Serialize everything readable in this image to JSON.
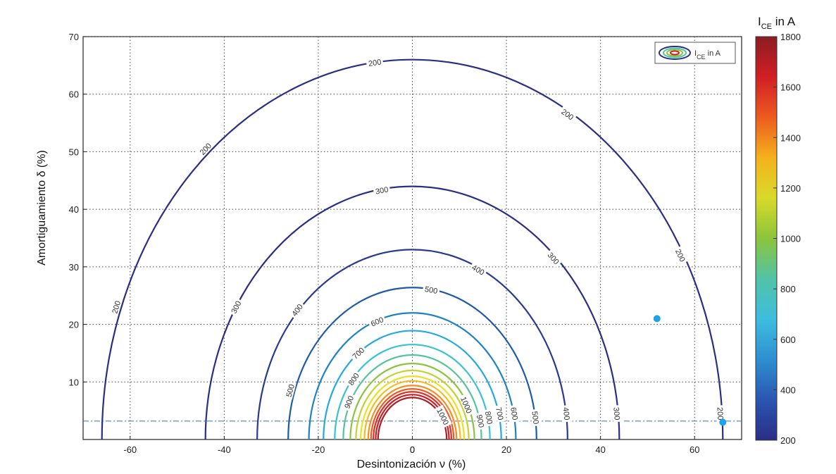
{
  "chart_data": {
    "type": "contour",
    "xlabel": "Desintonización ν (%)",
    "ylabel": "Amortiguamiento δ (%)",
    "xlim": [
      -70,
      70
    ],
    "ylim": [
      0,
      70
    ],
    "xticks": [
      -60,
      -40,
      -20,
      0,
      20,
      40,
      60
    ],
    "yticks": [
      10,
      20,
      30,
      40,
      50,
      60,
      70
    ],
    "grid": true,
    "legend": {
      "position": "top-right",
      "label_main": "I",
      "label_sub": "CE",
      "label_rest": " in A"
    },
    "colorbar": {
      "title_main": "I",
      "title_sub": "CE",
      "title_rest": " in A",
      "min": 200,
      "max": 1800,
      "ticks": [
        200,
        400,
        600,
        800,
        1000,
        1200,
        1400,
        1600,
        1800
      ],
      "colors": [
        "#2b2e88",
        "#2a56b0",
        "#2f8fd0",
        "#3dbde0",
        "#52c3a6",
        "#8cc43c",
        "#d8da2a",
        "#f4b21c",
        "#ec5b1f",
        "#d11f25",
        "#8b1e22"
      ]
    },
    "levels": [
      {
        "value": 200,
        "radius": 66,
        "color": "#2a2f84",
        "labeled": true
      },
      {
        "value": 300,
        "radius": 44,
        "color": "#2a2f84",
        "labeled": true
      },
      {
        "value": 400,
        "radius": 33,
        "color": "#283a92",
        "labeled": true
      },
      {
        "value": 500,
        "radius": 26.4,
        "color": "#1f5aa9",
        "labeled": true
      },
      {
        "value": 600,
        "radius": 22,
        "color": "#1d82c6",
        "labeled": true
      },
      {
        "value": 700,
        "radius": 18.9,
        "color": "#24a9df",
        "labeled": true
      },
      {
        "value": 800,
        "radius": 16.5,
        "color": "#39c2d0",
        "labeled": true
      },
      {
        "value": 900,
        "radius": 14.7,
        "color": "#56c49a",
        "labeled": true
      },
      {
        "value": 1000,
        "radius": 13.2,
        "color": "#8ac43f",
        "labeled": true
      },
      {
        "value": 1100,
        "radius": 12.0,
        "color": "#c0d32e",
        "labeled": false
      },
      {
        "value": 1200,
        "radius": 11.0,
        "color": "#ece11e",
        "labeled": false
      },
      {
        "value": 1300,
        "radius": 10.2,
        "color": "#f6bb1f",
        "labeled": false
      },
      {
        "value": 1400,
        "radius": 9.4,
        "color": "#f28f20",
        "labeled": false
      },
      {
        "value": 1500,
        "radius": 8.8,
        "color": "#ec5a22",
        "labeled": false
      },
      {
        "value": 1600,
        "radius": 8.3,
        "color": "#df2e26",
        "labeled": false
      },
      {
        "value": 1700,
        "radius": 7.8,
        "color": "#c91f26",
        "labeled": false
      },
      {
        "value": 1800,
        "radius": 7.3,
        "color": "#ac1e24",
        "labeled": false
      }
    ],
    "contour_labels": [
      {
        "text": "200",
        "x": -8,
        "y": 65.5
      },
      {
        "text": "200",
        "x": 33,
        "y": 56.5
      },
      {
        "text": "200",
        "x": -44,
        "y": 50.5
      },
      {
        "text": "200",
        "x": 57,
        "y": 32
      },
      {
        "text": "200",
        "x": -63,
        "y": 23
      },
      {
        "text": "200",
        "x": 65.5,
        "y": 4.5
      },
      {
        "text": "300",
        "x": -6.5,
        "y": 43.3
      },
      {
        "text": "300",
        "x": 30,
        "y": 31.5
      },
      {
        "text": "300",
        "x": -37.5,
        "y": 23
      },
      {
        "text": "300",
        "x": 43.5,
        "y": 4.5
      },
      {
        "text": "400",
        "x": 14,
        "y": 29.5
      },
      {
        "text": "400",
        "x": -24.5,
        "y": 22.5
      },
      {
        "text": "400",
        "x": 32.8,
        "y": 4.5
      },
      {
        "text": "500",
        "x": 4,
        "y": 26
      },
      {
        "text": "500",
        "x": -26,
        "y": 8.5
      },
      {
        "text": "500",
        "x": 26.2,
        "y": 3.8
      },
      {
        "text": "600",
        "x": -7.5,
        "y": 20.5
      },
      {
        "text": "600",
        "x": 21.7,
        "y": 4.5
      },
      {
        "text": "700",
        "x": -11.5,
        "y": 15
      },
      {
        "text": "700",
        "x": 18.6,
        "y": 4.5
      },
      {
        "text": "800",
        "x": -12.5,
        "y": 10.5
      },
      {
        "text": "800",
        "x": 16.3,
        "y": 3.8
      },
      {
        "text": "900",
        "x": -13.5,
        "y": 6.5
      },
      {
        "text": "900",
        "x": 14.5,
        "y": 3.2
      },
      {
        "text": "1000",
        "x": 11.5,
        "y": 6
      },
      {
        "text": "1000",
        "x": 6.5,
        "y": 4
      }
    ],
    "hline": {
      "y": 3.2
    },
    "points": [
      {
        "x": 52,
        "y": 21,
        "color": "#1fa3e6"
      },
      {
        "x": 66,
        "y": 3,
        "color": "#1fa3e6"
      }
    ]
  }
}
